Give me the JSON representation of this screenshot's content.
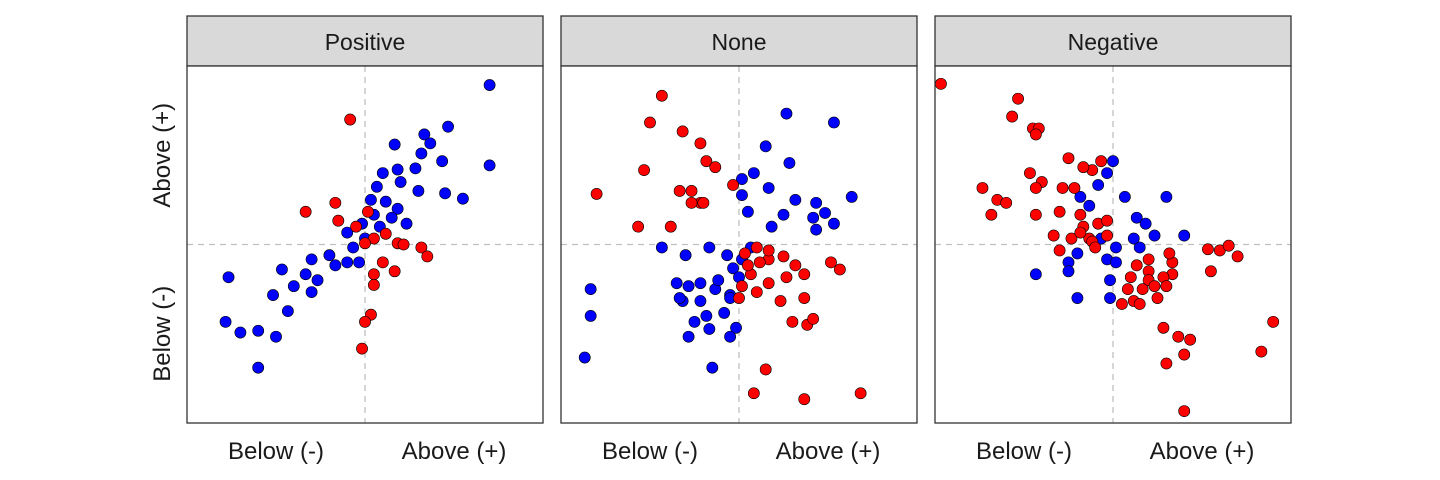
{
  "chart_data": {
    "type": "scatter",
    "title": "",
    "xlabel": "",
    "ylabel": "",
    "x_tick_labels": [
      "Below (-)",
      "Above (+)"
    ],
    "y_tick_labels": [
      "Below (-)",
      "Above (+)"
    ],
    "xlim": [
      -3,
      3
    ],
    "ylim": [
      -3,
      3
    ],
    "grid": false,
    "reference_lines": {
      "x": 0,
      "y": 0,
      "style": "dashed"
    },
    "colors": {
      "blue": "#0000ff",
      "red": "#ff0000",
      "strip_bg": "#d9d9d9",
      "frame": "#333333",
      "ref_line": "#bfbfbf"
    },
    "panels": [
      {
        "label": "Positive",
        "points": [
          [
            2.1,
            2.68,
            "b"
          ],
          [
            2.1,
            1.33,
            "b"
          ],
          [
            1.4,
            1.98,
            "b"
          ],
          [
            1.0,
            1.85,
            "b"
          ],
          [
            0.5,
            1.68,
            "b"
          ],
          [
            0.55,
            1.26,
            "b"
          ],
          [
            0.95,
            1.53,
            "b"
          ],
          [
            1.3,
            1.4,
            "b"
          ],
          [
            0.85,
            1.28,
            "b"
          ],
          [
            1.65,
            0.77,
            "b"
          ],
          [
            1.35,
            0.86,
            "b"
          ],
          [
            0.6,
            1.05,
            "b"
          ],
          [
            0.9,
            0.9,
            "b"
          ],
          [
            0.2,
            0.97,
            "b"
          ],
          [
            0.35,
            0.72,
            "b"
          ],
          [
            0.55,
            0.6,
            "b"
          ],
          [
            0.45,
            0.45,
            "b"
          ],
          [
            0.15,
            0.5,
            "b"
          ],
          [
            0.25,
            0.3,
            "b"
          ],
          [
            0.7,
            0.35,
            "b"
          ],
          [
            0.0,
            0.1,
            "b"
          ],
          [
            -0.2,
            -0.05,
            "b"
          ],
          [
            -0.1,
            -0.3,
            "b"
          ],
          [
            -0.3,
            -0.3,
            "b"
          ],
          [
            -0.6,
            -0.18,
            "b"
          ],
          [
            -0.9,
            -0.25,
            "b"
          ],
          [
            -1.0,
            -0.5,
            "b"
          ],
          [
            -0.8,
            -0.6,
            "b"
          ],
          [
            -1.4,
            -0.42,
            "b"
          ],
          [
            -1.2,
            -0.7,
            "b"
          ],
          [
            -1.55,
            -0.85,
            "b"
          ],
          [
            -0.9,
            -0.8,
            "b"
          ],
          [
            -1.3,
            -1.12,
            "b"
          ],
          [
            -1.8,
            -1.45,
            "b"
          ],
          [
            -1.5,
            -1.55,
            "b"
          ],
          [
            -2.1,
            -1.48,
            "b"
          ],
          [
            -2.35,
            -1.3,
            "b"
          ],
          [
            -1.8,
            -2.07,
            "b"
          ],
          [
            -2.3,
            -0.55,
            "b"
          ],
          [
            -0.05,
            0.35,
            "b"
          ],
          [
            0.1,
            0.75,
            "b"
          ],
          [
            -0.3,
            0.2,
            "b"
          ],
          [
            -0.5,
            -0.35,
            "b"
          ],
          [
            1.1,
            1.7,
            "b"
          ],
          [
            0.3,
            1.2,
            "b"
          ],
          [
            -0.25,
            2.1,
            "r"
          ],
          [
            -1.0,
            0.55,
            "r"
          ],
          [
            -0.5,
            0.7,
            "r"
          ],
          [
            -0.45,
            0.4,
            "r"
          ],
          [
            -0.15,
            0.3,
            "r"
          ],
          [
            0.05,
            0.55,
            "r"
          ],
          [
            0.15,
            0.1,
            "r"
          ],
          [
            0.55,
            0.02,
            "r"
          ],
          [
            0.95,
            -0.05,
            "r"
          ],
          [
            1.05,
            -0.2,
            "r"
          ],
          [
            0.5,
            -0.45,
            "r"
          ],
          [
            0.15,
            -0.5,
            "r"
          ],
          [
            0.15,
            -0.68,
            "r"
          ],
          [
            0.1,
            -1.18,
            "r"
          ],
          [
            0.0,
            -1.3,
            "r"
          ],
          [
            -0.05,
            -1.75,
            "r"
          ],
          [
            0.3,
            -0.3,
            "r"
          ],
          [
            0.65,
            0.0,
            "r"
          ],
          [
            0.35,
            0.18,
            "r"
          ],
          [
            0.0,
            0.02,
            "r"
          ]
        ]
      },
      {
        "label": "None",
        "points": [
          [
            0.8,
            2.2,
            "b"
          ],
          [
            1.6,
            2.05,
            "b"
          ],
          [
            0.45,
            1.65,
            "b"
          ],
          [
            0.85,
            1.37,
            "b"
          ],
          [
            0.25,
            1.2,
            "b"
          ],
          [
            0.05,
            1.1,
            "b"
          ],
          [
            0.5,
            0.95,
            "b"
          ],
          [
            0.95,
            0.75,
            "b"
          ],
          [
            1.3,
            0.7,
            "b"
          ],
          [
            1.45,
            0.53,
            "b"
          ],
          [
            1.9,
            0.8,
            "b"
          ],
          [
            0.75,
            0.5,
            "b"
          ],
          [
            1.25,
            0.45,
            "b"
          ],
          [
            1.6,
            0.35,
            "b"
          ],
          [
            0.55,
            0.3,
            "b"
          ],
          [
            0.15,
            0.55,
            "b"
          ],
          [
            0.05,
            0.83,
            "b"
          ],
          [
            1.3,
            0.25,
            "b"
          ],
          [
            -2.5,
            -0.75,
            "b"
          ],
          [
            -2.5,
            -1.2,
            "b"
          ],
          [
            -2.6,
            -1.9,
            "b"
          ],
          [
            -1.3,
            -0.05,
            "b"
          ],
          [
            -0.9,
            -0.18,
            "b"
          ],
          [
            -0.5,
            -0.05,
            "b"
          ],
          [
            -0.2,
            -0.18,
            "b"
          ],
          [
            -0.1,
            -0.4,
            "b"
          ],
          [
            0.05,
            -0.25,
            "b"
          ],
          [
            -0.65,
            -0.65,
            "b"
          ],
          [
            -0.85,
            -0.7,
            "b"
          ],
          [
            -1.05,
            -0.65,
            "b"
          ],
          [
            -0.95,
            -0.95,
            "b"
          ],
          [
            -0.65,
            -0.95,
            "b"
          ],
          [
            -0.4,
            -0.75,
            "b"
          ],
          [
            -0.15,
            -0.85,
            "b"
          ],
          [
            -0.25,
            -1.15,
            "b"
          ],
          [
            -0.55,
            -1.2,
            "b"
          ],
          [
            -0.75,
            -1.3,
            "b"
          ],
          [
            -0.85,
            -1.55,
            "b"
          ],
          [
            -1.0,
            -0.9,
            "b"
          ],
          [
            -0.05,
            -1.4,
            "b"
          ],
          [
            -0.15,
            -1.55,
            "b"
          ],
          [
            -0.5,
            -1.42,
            "b"
          ],
          [
            -0.45,
            -2.07,
            "b"
          ],
          [
            0.0,
            -0.55,
            "b"
          ],
          [
            -0.15,
            -0.9,
            "b"
          ],
          [
            -0.35,
            -0.6,
            "b"
          ],
          [
            0.2,
            -0.05,
            "b"
          ],
          [
            -1.3,
            2.5,
            "r"
          ],
          [
            -1.5,
            2.05,
            "r"
          ],
          [
            -0.95,
            1.9,
            "r"
          ],
          [
            -0.65,
            1.7,
            "r"
          ],
          [
            -0.55,
            1.4,
            "r"
          ],
          [
            -0.4,
            1.3,
            "r"
          ],
          [
            -1.6,
            1.25,
            "r"
          ],
          [
            -0.1,
            1.0,
            "r"
          ],
          [
            -2.4,
            0.85,
            "r"
          ],
          [
            -1.0,
            0.9,
            "r"
          ],
          [
            -0.8,
            0.9,
            "r"
          ],
          [
            -0.65,
            0.7,
            "r"
          ],
          [
            -0.6,
            0.7,
            "r"
          ],
          [
            -0.8,
            0.7,
            "r"
          ],
          [
            -1.7,
            0.3,
            "r"
          ],
          [
            -1.15,
            0.3,
            "r"
          ],
          [
            0.1,
            -0.15,
            "r"
          ],
          [
            0.3,
            -0.05,
            "r"
          ],
          [
            0.5,
            -0.25,
            "r"
          ],
          [
            0.2,
            -0.5,
            "r"
          ],
          [
            0.5,
            -0.65,
            "r"
          ],
          [
            0.3,
            -0.8,
            "r"
          ],
          [
            0.0,
            -0.9,
            "r"
          ],
          [
            0.8,
            -0.55,
            "r"
          ],
          [
            0.7,
            -0.95,
            "r"
          ],
          [
            1.1,
            -0.5,
            "r"
          ],
          [
            1.1,
            -0.9,
            "r"
          ],
          [
            0.9,
            -1.3,
            "r"
          ],
          [
            1.15,
            -1.35,
            "r"
          ],
          [
            1.25,
            -1.25,
            "r"
          ],
          [
            1.55,
            -0.3,
            "r"
          ],
          [
            1.7,
            -0.42,
            "r"
          ],
          [
            0.45,
            -2.1,
            "r"
          ],
          [
            0.25,
            -2.5,
            "r"
          ],
          [
            1.1,
            -2.6,
            "r"
          ],
          [
            2.05,
            -2.5,
            "r"
          ],
          [
            0.15,
            -0.35,
            "r"
          ],
          [
            0.35,
            -0.3,
            "r"
          ],
          [
            0.75,
            -0.2,
            "r"
          ],
          [
            0.95,
            -0.35,
            "r"
          ],
          [
            0.05,
            -0.7,
            "r"
          ],
          [
            0.5,
            -0.1,
            "r"
          ]
        ]
      },
      {
        "label": "Negative",
        "points": [
          [
            0.0,
            1.4,
            "b"
          ],
          [
            -0.1,
            1.2,
            "b"
          ],
          [
            -0.25,
            1.0,
            "b"
          ],
          [
            -0.55,
            0.8,
            "b"
          ],
          [
            -0.4,
            0.65,
            "b"
          ],
          [
            0.2,
            0.8,
            "b"
          ],
          [
            0.9,
            0.8,
            "b"
          ],
          [
            0.4,
            0.45,
            "b"
          ],
          [
            0.55,
            0.35,
            "b"
          ],
          [
            1.2,
            0.15,
            "b"
          ],
          [
            0.7,
            0.15,
            "b"
          ],
          [
            0.45,
            -0.05,
            "b"
          ],
          [
            0.05,
            -0.05,
            "b"
          ],
          [
            -0.1,
            -0.25,
            "b"
          ],
          [
            -0.6,
            -0.15,
            "b"
          ],
          [
            -0.75,
            -0.3,
            "b"
          ],
          [
            -0.75,
            -0.45,
            "b"
          ],
          [
            -1.3,
            -0.5,
            "b"
          ],
          [
            -0.6,
            -0.9,
            "b"
          ],
          [
            -0.05,
            -0.6,
            "b"
          ],
          [
            -0.05,
            -0.9,
            "b"
          ],
          [
            0.05,
            -0.3,
            "b"
          ],
          [
            0.35,
            0.1,
            "b"
          ],
          [
            -0.2,
            0.1,
            "b"
          ],
          [
            -2.9,
            2.7,
            "r"
          ],
          [
            -1.6,
            2.45,
            "r"
          ],
          [
            -1.7,
            2.15,
            "r"
          ],
          [
            -1.35,
            1.95,
            "r"
          ],
          [
            -1.25,
            1.95,
            "r"
          ],
          [
            -1.3,
            1.85,
            "r"
          ],
          [
            -0.75,
            1.45,
            "r"
          ],
          [
            -0.35,
            1.25,
            "r"
          ],
          [
            -0.5,
            1.3,
            "r"
          ],
          [
            -0.2,
            1.4,
            "r"
          ],
          [
            -1.4,
            1.2,
            "r"
          ],
          [
            -1.2,
            1.05,
            "r"
          ],
          [
            -1.3,
            0.95,
            "r"
          ],
          [
            -0.85,
            0.95,
            "r"
          ],
          [
            -0.65,
            0.95,
            "r"
          ],
          [
            -2.2,
            0.95,
            "r"
          ],
          [
            -1.95,
            0.75,
            "r"
          ],
          [
            -1.8,
            0.7,
            "r"
          ],
          [
            -2.05,
            0.5,
            "r"
          ],
          [
            -0.55,
            0.5,
            "r"
          ],
          [
            -0.5,
            0.3,
            "r"
          ],
          [
            -0.25,
            0.35,
            "r"
          ],
          [
            -0.1,
            0.4,
            "r"
          ],
          [
            -0.9,
            0.55,
            "r"
          ],
          [
            -1.3,
            0.5,
            "r"
          ],
          [
            -0.7,
            0.1,
            "r"
          ],
          [
            -0.4,
            0.1,
            "r"
          ],
          [
            -0.55,
            0.2,
            "r"
          ],
          [
            -0.35,
            0.05,
            "r"
          ],
          [
            -0.3,
            -0.05,
            "r"
          ],
          [
            -0.1,
            0.15,
            "r"
          ],
          [
            -0.9,
            -0.1,
            "r"
          ],
          [
            -1.0,
            0.15,
            "r"
          ],
          [
            1.6,
            -0.08,
            "r"
          ],
          [
            1.8,
            -0.1,
            "r"
          ],
          [
            1.95,
            -0.02,
            "r"
          ],
          [
            2.1,
            -0.2,
            "r"
          ],
          [
            1.65,
            -0.45,
            "r"
          ],
          [
            1.0,
            -0.3,
            "r"
          ],
          [
            1.0,
            -0.5,
            "r"
          ],
          [
            0.85,
            -0.55,
            "r"
          ],
          [
            0.6,
            -0.45,
            "r"
          ],
          [
            0.6,
            -0.6,
            "r"
          ],
          [
            0.7,
            -0.7,
            "r"
          ],
          [
            0.75,
            -0.9,
            "r"
          ],
          [
            0.5,
            -0.75,
            "r"
          ],
          [
            0.3,
            -0.55,
            "r"
          ],
          [
            0.4,
            -0.35,
            "r"
          ],
          [
            0.25,
            -0.75,
            "r"
          ],
          [
            0.35,
            -0.95,
            "r"
          ],
          [
            0.45,
            -1.0,
            "r"
          ],
          [
            0.15,
            -1.0,
            "r"
          ],
          [
            0.85,
            -1.4,
            "r"
          ],
          [
            1.1,
            -1.55,
            "r"
          ],
          [
            1.3,
            -1.6,
            "r"
          ],
          [
            1.2,
            -1.85,
            "r"
          ],
          [
            0.9,
            -2.0,
            "r"
          ],
          [
            2.5,
            -1.8,
            "r"
          ],
          [
            2.7,
            -1.3,
            "r"
          ],
          [
            1.2,
            -2.8,
            "r"
          ],
          [
            0.9,
            -0.7,
            "r"
          ],
          [
            0.6,
            -0.25,
            "r"
          ],
          [
            0.95,
            -0.15,
            "r"
          ]
        ]
      }
    ]
  }
}
